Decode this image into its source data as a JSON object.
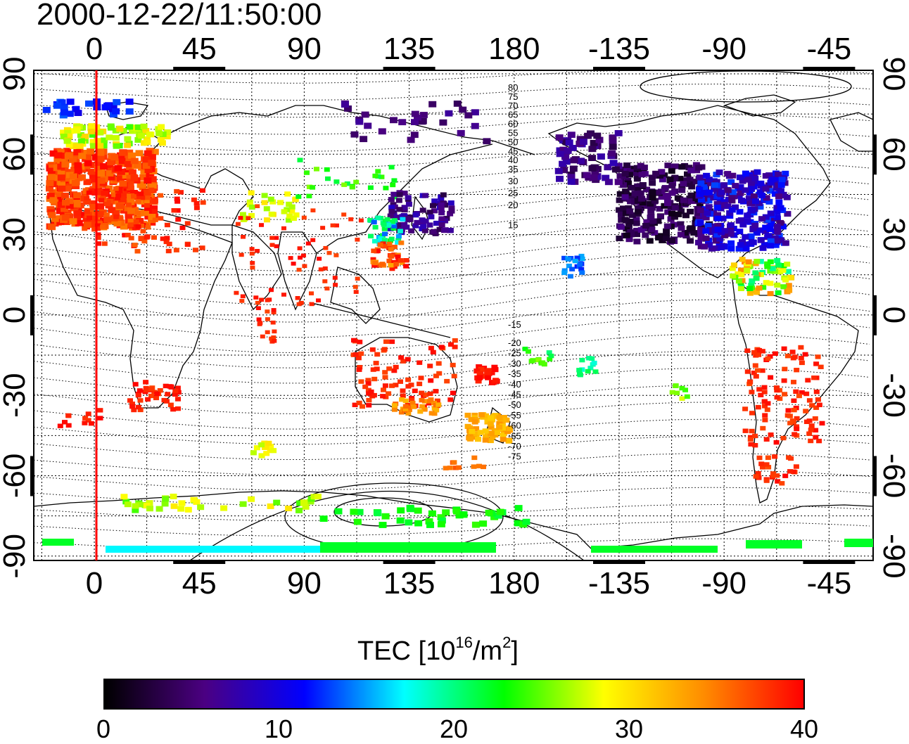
{
  "title": "2000-12-22/11:50:00",
  "map": {
    "top_lon_labels": [
      "0",
      "45",
      "90",
      "135",
      "180",
      "-135",
      "-90",
      "-45"
    ],
    "bottom_lon_labels": [
      "0",
      "45",
      "90",
      "135",
      "180",
      "-135",
      "-90",
      "-45"
    ],
    "left_lat_labels": [
      "90",
      "60",
      "30",
      "0",
      "-30",
      "-60",
      "-90"
    ],
    "right_lat_labels": [
      "90",
      "60",
      "30",
      "0",
      "-30",
      "-60",
      "-90"
    ],
    "contour_labels": [
      "80",
      "75",
      "70",
      "65",
      "60",
      "55",
      "50",
      "45",
      "40",
      "35",
      "30",
      "25",
      "20",
      "15",
      "-15",
      "-20",
      "-25",
      "-30",
      "-35",
      "-40",
      "-45",
      "-50",
      "-55",
      "-60",
      "-65",
      "-70",
      "-75"
    ],
    "marker_line_color": "#ff0000"
  },
  "colorbar": {
    "title_main": "TEC  [10",
    "title_exp1": "16",
    "title_mid": "/m",
    "title_exp2": "2",
    "title_end": "]",
    "ticks": [
      "0",
      "10",
      "20",
      "30",
      "40"
    ],
    "range": [
      0,
      40
    ],
    "colors": [
      "#000000",
      "#4b0082",
      "#0000ff",
      "#00ffff",
      "#00ff00",
      "#ffff00",
      "#ff8c00",
      "#ff0000"
    ]
  }
}
